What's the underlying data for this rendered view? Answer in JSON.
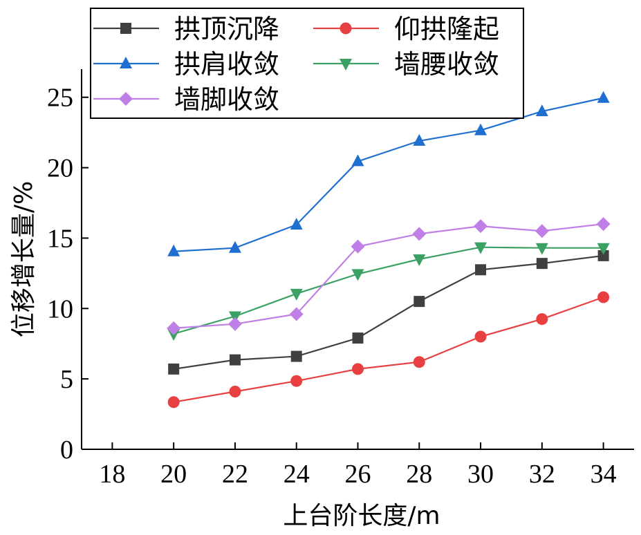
{
  "chart_data": {
    "type": "line",
    "xlabel": "上台阶长度/m",
    "ylabel": "位移增长量/%",
    "xlim": [
      17,
      35
    ],
    "ylim": [
      0,
      27
    ],
    "xticks": [
      18,
      20,
      22,
      24,
      26,
      28,
      30,
      32,
      34
    ],
    "yticks": [
      0,
      5,
      10,
      15,
      20,
      25
    ],
    "x": [
      20,
      22,
      24,
      26,
      28,
      30,
      32,
      34
    ],
    "legend_position": "top-left",
    "series": [
      {
        "name": "拱顶沉降",
        "color": "#404040",
        "marker": "square",
        "values": [
          5.7,
          6.35,
          6.6,
          7.9,
          10.5,
          12.75,
          13.2,
          13.75
        ]
      },
      {
        "name": "仰拱隆起",
        "color": "#e84040",
        "marker": "circle",
        "values": [
          3.35,
          4.1,
          4.85,
          5.7,
          6.2,
          8.0,
          9.25,
          10.8
        ]
      },
      {
        "name": "拱肩收敛",
        "color": "#1f6fd0",
        "marker": "triangle-up",
        "values": [
          14.05,
          14.3,
          15.95,
          20.45,
          21.9,
          22.65,
          24.0,
          24.95
        ]
      },
      {
        "name": "墙腰收敛",
        "color": "#3aa063",
        "marker": "triangle-down",
        "values": [
          8.2,
          9.45,
          11.05,
          12.45,
          13.5,
          14.35,
          14.3,
          14.3
        ]
      },
      {
        "name": "墙脚收敛",
        "color": "#c07fe6",
        "marker": "diamond",
        "values": [
          8.6,
          8.9,
          9.6,
          14.4,
          15.3,
          15.85,
          15.5,
          16.0
        ]
      }
    ]
  }
}
